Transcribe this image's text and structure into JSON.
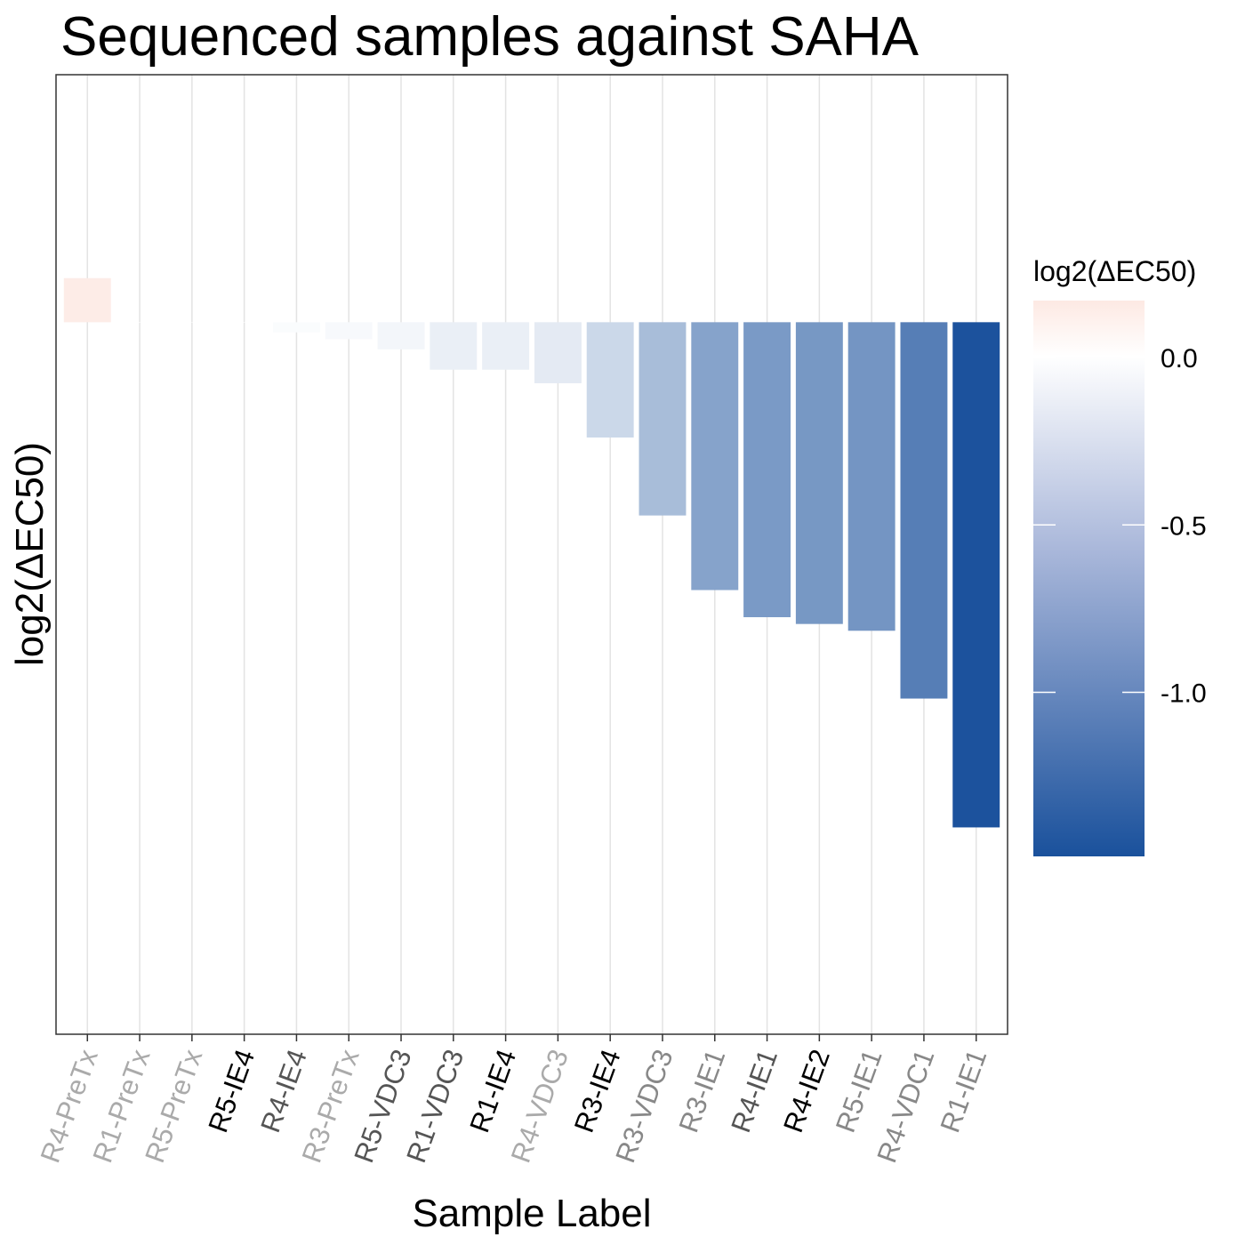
{
  "chart_data": {
    "type": "bar",
    "title": "Sequenced samples against SAHA",
    "xlabel": "Sample Label",
    "ylabel": "log2(ΔEC50)",
    "ylim": [
      -2.1,
      0.73
    ],
    "grid": "vertical",
    "categories": [
      "R4-PreTx",
      "R1-PreTx",
      "R5-PreTx",
      "R5-IE4",
      "R4-IE4",
      "R3-PreTx",
      "R5-VDC3",
      "R1-VDC3",
      "R1-IE4",
      "R4-VDC3",
      "R3-IE4",
      "R3-VDC3",
      "R3-IE1",
      "R4-IE1",
      "R4-IE2",
      "R5-IE1",
      "R4-VDC1",
      "R1-IE1"
    ],
    "values": [
      0.13,
      0.0,
      0.0,
      0.0,
      -0.03,
      -0.05,
      -0.08,
      -0.14,
      -0.14,
      -0.18,
      -0.34,
      -0.57,
      -0.79,
      -0.87,
      -0.89,
      -0.91,
      -1.11,
      -1.49
    ],
    "label_colors": [
      "#aaaaaa",
      "#aaaaaa",
      "#aaaaaa",
      "#000000",
      "#555555",
      "#aaaaaa",
      "#555555",
      "#555555",
      "#000000",
      "#aaaaaa",
      "#000000",
      "#888888",
      "#888888",
      "#555555",
      "#000000",
      "#888888",
      "#888888",
      "#888888"
    ],
    "legend": {
      "title": "log2(ΔEC50)",
      "placement": "right",
      "ticks": [
        0.0,
        -0.5,
        -1.0
      ],
      "tick_labels": [
        "0.0",
        "-0.5",
        "-1.0"
      ],
      "range": [
        -1.5,
        0.15
      ],
      "low_color": "#1a519c",
      "mid_color": "#ffffff",
      "high_color": "#fde9e3"
    }
  }
}
